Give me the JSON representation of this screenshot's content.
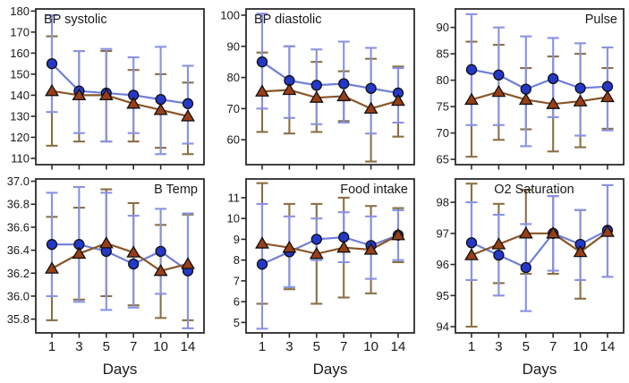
{
  "page": {
    "background": "#ffffff"
  },
  "colors": {
    "frame": "#2b2b2b",
    "text": "#1a1a1a",
    "blue_marker": "#2438c8",
    "blue_line": "#6f7fd8",
    "blue_err": "#8893e2",
    "brown_marker": "#993f16",
    "brown_line": "#8a5526",
    "brown_err": "#8a6f45"
  },
  "chart_data": [
    {
      "type": "line",
      "slug": "bp-systolic",
      "title": "BP systolic",
      "title_align": "left",
      "categories": [
        "1",
        "3",
        "5",
        "7",
        "10",
        "14"
      ],
      "show_x_labels": false,
      "xlabel": "",
      "ylim": [
        107,
        181
      ],
      "ytick_values": [
        110,
        120,
        130,
        140,
        150,
        160,
        170,
        180
      ],
      "ytick_labels": [
        "110",
        "120",
        "130",
        "140",
        "150",
        "160",
        "170",
        "180"
      ],
      "series": [
        {
          "name": "blue-circles",
          "marker": "circle",
          "values": [
            155,
            142,
            141,
            140,
            138,
            136
          ],
          "err_lo": [
            132,
            122,
            118,
            122,
            112,
            117
          ],
          "err_hi": [
            178,
            161,
            162,
            158,
            163,
            154
          ]
        },
        {
          "name": "brown-triangles",
          "marker": "triangle",
          "values": [
            142,
            140,
            140,
            136,
            133,
            130
          ],
          "err_lo": [
            116,
            118,
            118,
            118,
            115,
            112
          ],
          "err_hi": [
            168,
            161,
            161,
            152,
            150,
            146
          ]
        }
      ]
    },
    {
      "type": "line",
      "slug": "bp-diastolic",
      "title": "BP diastolic",
      "title_align": "left",
      "categories": [
        "1",
        "3",
        "5",
        "7",
        "10",
        "14"
      ],
      "show_x_labels": false,
      "xlabel": "",
      "ylim": [
        52,
        102
      ],
      "ytick_values": [
        60,
        70,
        80,
        90,
        100
      ],
      "ytick_labels": [
        "60",
        "70",
        "80",
        "90",
        "100"
      ],
      "series": [
        {
          "name": "blue-circles",
          "marker": "circle",
          "values": [
            85,
            79,
            77.5,
            78,
            76.5,
            75
          ],
          "err_lo": [
            70,
            67,
            65,
            65.5,
            62,
            65.5
          ],
          "err_hi": [
            100.5,
            90,
            89,
            91.5,
            89.5,
            83
          ]
        },
        {
          "name": "brown-triangles",
          "marker": "triangle",
          "values": [
            75.5,
            76,
            73.5,
            74,
            70,
            72.5
          ],
          "err_lo": [
            62.5,
            62,
            62.5,
            66,
            53,
            61
          ],
          "err_hi": [
            88,
            90,
            85,
            82,
            86,
            83.5
          ]
        }
      ]
    },
    {
      "type": "line",
      "slug": "pulse",
      "title": "Pulse",
      "title_align": "right",
      "categories": [
        "1",
        "3",
        "5",
        "7",
        "10",
        "14"
      ],
      "show_x_labels": false,
      "xlabel": "",
      "ylim": [
        64,
        93.5
      ],
      "ytick_values": [
        65,
        70,
        75,
        80,
        85,
        90
      ],
      "ytick_labels": [
        "65",
        "70",
        "75",
        "80",
        "85",
        "90"
      ],
      "series": [
        {
          "name": "blue-circles",
          "marker": "circle",
          "values": [
            82,
            81,
            78.3,
            80.3,
            78.5,
            78.8
          ],
          "err_lo": [
            71.5,
            71.5,
            67.5,
            73,
            69.5,
            70.5
          ],
          "err_hi": [
            92.5,
            90,
            88.3,
            88,
            87,
            86.2
          ]
        },
        {
          "name": "brown-triangles",
          "marker": "triangle",
          "values": [
            76.3,
            77.8,
            76.3,
            75.5,
            76,
            76.8
          ],
          "err_lo": [
            65.5,
            68.7,
            70.7,
            66.5,
            67.3,
            70.8
          ],
          "err_hi": [
            87.3,
            86.7,
            82.3,
            84.5,
            85,
            82.3
          ]
        }
      ]
    },
    {
      "type": "line",
      "slug": "b-temp",
      "title": "B Temp",
      "title_align": "right",
      "categories": [
        "1",
        "3",
        "5",
        "7",
        "10",
        "14"
      ],
      "show_x_labels": true,
      "xlabel": "Days",
      "ylim": [
        35.68,
        37.02
      ],
      "ytick_values": [
        35.8,
        36.0,
        36.2,
        36.4,
        36.6,
        36.8,
        37.0
      ],
      "ytick_labels": [
        "35.8",
        "36.0",
        "36.2",
        "36.4",
        "36.6",
        "36.8",
        "37.0"
      ],
      "series": [
        {
          "name": "blue-circles",
          "marker": "circle",
          "values": [
            36.45,
            36.45,
            36.39,
            36.28,
            36.39,
            36.22
          ],
          "err_lo": [
            36.0,
            35.95,
            35.88,
            35.9,
            36.02,
            35.72
          ],
          "err_hi": [
            36.9,
            36.95,
            36.9,
            36.7,
            36.76,
            36.72
          ]
        },
        {
          "name": "brown-triangles",
          "marker": "triangle",
          "values": [
            36.24,
            36.37,
            36.46,
            36.38,
            36.22,
            36.28
          ],
          "err_lo": [
            35.79,
            35.97,
            36.0,
            35.92,
            35.81,
            35.79
          ],
          "err_hi": [
            36.69,
            36.77,
            36.93,
            36.81,
            36.62,
            36.71
          ]
        }
      ]
    },
    {
      "type": "line",
      "slug": "food-intake",
      "title": "Food intake",
      "title_align": "right",
      "categories": [
        "1",
        "3",
        "5",
        "7",
        "10",
        "14"
      ],
      "show_x_labels": true,
      "xlabel": "Days",
      "ylim": [
        4.5,
        11.9
      ],
      "ytick_values": [
        5,
        6,
        7,
        8,
        9,
        10,
        11
      ],
      "ytick_labels": [
        "5",
        "6",
        "7",
        "8",
        "9",
        "10",
        "11"
      ],
      "series": [
        {
          "name": "blue-circles",
          "marker": "circle",
          "values": [
            7.8,
            8.4,
            9.0,
            9.1,
            8.7,
            9.2
          ],
          "err_lo": [
            4.7,
            6.7,
            8.0,
            7.9,
            7.1,
            8.0
          ],
          "err_hi": [
            10.7,
            10.1,
            10.0,
            10.3,
            10.1,
            10.4
          ]
        },
        {
          "name": "brown-triangles",
          "marker": "triangle",
          "values": [
            8.8,
            8.6,
            8.3,
            8.6,
            8.5,
            9.2
          ],
          "err_lo": [
            5.9,
            6.6,
            5.9,
            6.2,
            6.4,
            7.9
          ],
          "err_hi": [
            11.7,
            10.7,
            10.7,
            11.0,
            10.6,
            10.5
          ]
        }
      ]
    },
    {
      "type": "line",
      "slug": "o2-saturation",
      "title": "O2 Saturation",
      "title_align": "center",
      "categories": [
        "1",
        "3",
        "5",
        "7",
        "10",
        "14"
      ],
      "show_x_labels": true,
      "xlabel": "Days",
      "ylim": [
        93.8,
        98.75
      ],
      "ytick_values": [
        94,
        95,
        96,
        97,
        98
      ],
      "ytick_labels": [
        "94",
        "95",
        "96",
        "97",
        "98"
      ],
      "series": [
        {
          "name": "blue-circles",
          "marker": "circle",
          "values": [
            96.7,
            96.3,
            95.9,
            97.0,
            96.65,
            97.1
          ],
          "err_lo": [
            95.5,
            95.0,
            94.5,
            95.8,
            95.5,
            95.6
          ],
          "err_hi": [
            98.0,
            97.6,
            97.3,
            98.2,
            97.75,
            98.55
          ]
        },
        {
          "name": "brown-triangles",
          "marker": "triangle",
          "values": [
            96.3,
            96.65,
            97.0,
            97.0,
            96.4,
            97.05
          ],
          "err_lo": [
            94.0,
            95.4,
            95.7,
            95.7,
            94.9,
            95.6
          ],
          "err_hi": [
            98.6,
            97.95,
            98.4,
            98.2,
            97.75,
            98.55
          ]
        }
      ]
    }
  ]
}
